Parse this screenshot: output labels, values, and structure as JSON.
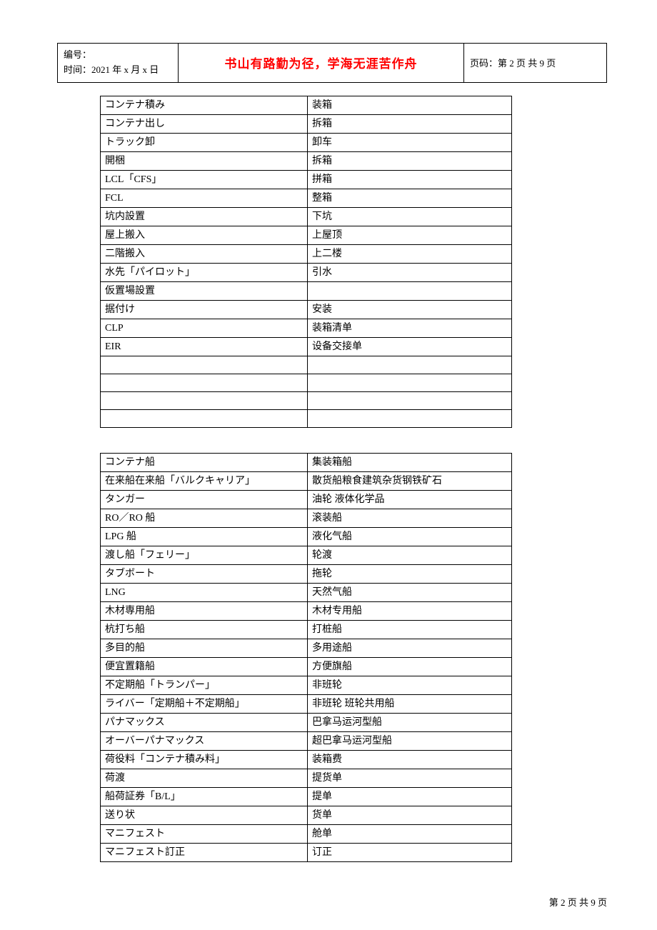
{
  "header": {
    "serial_label": "编号：",
    "date_label": "时间：2021 年 x 月 x 日",
    "motto": "书山有路勤为径，学海无涯苦作舟",
    "page_label": "页码：第 2 页 共 9 页"
  },
  "table1": {
    "rows": [
      [
        "コンテナ積み",
        "装箱"
      ],
      [
        "コンテナ出し",
        "拆箱"
      ],
      [
        "トラック卸",
        "卸车"
      ],
      [
        "開梱",
        "拆箱"
      ],
      [
        "LCL「CFS」",
        "拼箱"
      ],
      [
        "FCL",
        "整箱"
      ],
      [
        "坑内設置",
        "下坑"
      ],
      [
        "屋上搬入",
        "上屋顶"
      ],
      [
        "二階搬入",
        "上二楼"
      ],
      [
        "水先「パイロット」",
        "引水"
      ],
      [
        "仮置場設置",
        ""
      ],
      [
        "据付け",
        "安装"
      ],
      [
        "CLP",
        "装箱清单"
      ],
      [
        "EIR",
        "设备交接单"
      ],
      [
        "",
        ""
      ],
      [
        "",
        ""
      ],
      [
        "",
        ""
      ],
      [
        "",
        ""
      ]
    ]
  },
  "table2": {
    "rows": [
      [
        "コンテナ船",
        "集装箱船"
      ],
      [
        "在来船在来船「バルクキャリア」",
        "散货船粮食建筑杂货钢铁矿石"
      ],
      [
        "タンガー",
        "油轮 液体化学品"
      ],
      [
        "RO／RO 船",
        "滚装船"
      ],
      [
        "LPG 船",
        "液化气船"
      ],
      [
        "渡し船「フェリー」",
        "轮渡"
      ],
      [
        "タブボート",
        "拖轮"
      ],
      [
        "LNG",
        "天然气船"
      ],
      [
        "木材専用船",
        "木材专用船"
      ],
      [
        "杭打ち船",
        "打桩船"
      ],
      [
        "多目的船",
        "多用途船"
      ],
      [
        "便宜置籍船",
        "方便旗船"
      ],
      [
        "不定期船「トランパー」",
        "非班轮"
      ],
      [
        "ライバー「定期船＋不定期船」",
        "非班轮 班轮共用船"
      ],
      [
        "パナマックス",
        "巴拿马运河型船"
      ],
      [
        "オーバーパナマックス",
        "超巴拿马运河型船"
      ],
      [
        "荷役料「コンテナ積み料」",
        "装箱费"
      ],
      [
        "荷渡",
        "提货单"
      ],
      [
        "船荷証券「B/L」",
        "提单"
      ],
      [
        "送り状",
        "货单"
      ],
      [
        "マニフェスト",
        "舱单"
      ],
      [
        "マニフェスト訂正",
        "订正"
      ]
    ]
  },
  "footer": "第 2 页 共 9 页"
}
